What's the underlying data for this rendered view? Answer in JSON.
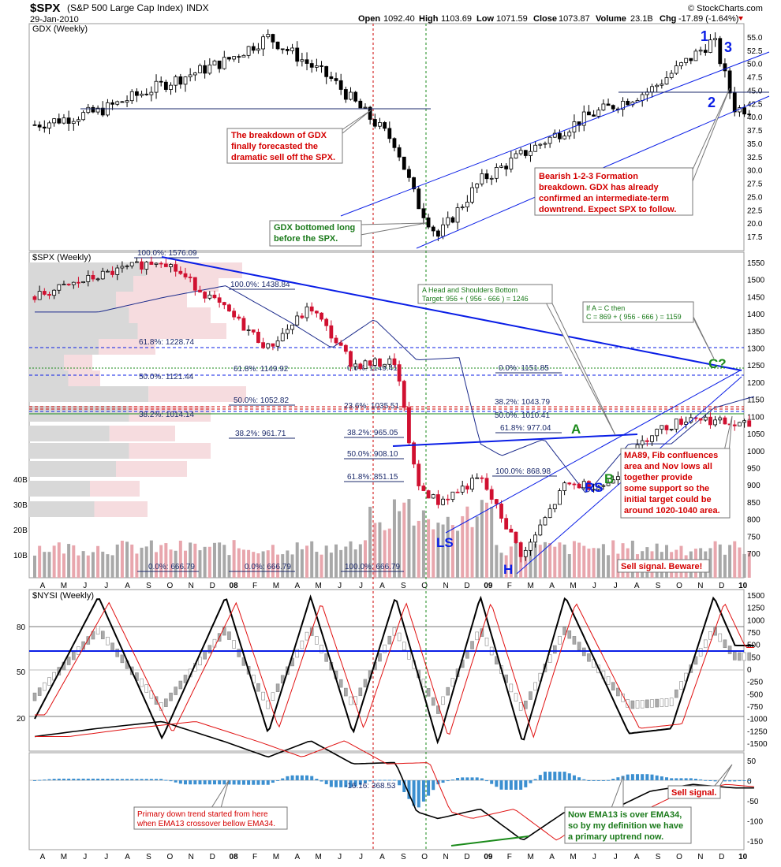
{
  "header": {
    "symbol": "$SPX",
    "name": "(S&P 500 Large Cap Index)",
    "exchange": "INDX",
    "date": "29-Jan-2010",
    "brand": "© StockCharts.com",
    "open_label": "Open",
    "open": "1092.40",
    "high_label": "High",
    "high": "1103.69",
    "low_label": "Low",
    "low": "1071.59",
    "close_label": "Close",
    "close": "1073.87",
    "volume_label": "Volume",
    "volume": "23.1B",
    "chg_label": "Chg",
    "chg": "-17.89 (-1.64%)"
  },
  "colors": {
    "blue_line": "#0a1ee6",
    "red_ma": "#e01010",
    "green_v": "#1a8a1a",
    "red_note": "#d40000",
    "green_note": "#1a7a1a",
    "vol_up": "#a8a8a8",
    "vol_down": "#e8a6ad",
    "candle_down": "#d01030",
    "macd_hist": "#3b8fd0"
  },
  "x_axis": {
    "top_labels": [
      "A",
      "M",
      "J",
      "J",
      "A",
      "S",
      "O",
      "N",
      "D",
      "08",
      "F",
      "M",
      "A",
      "M",
      "J",
      "J",
      "A",
      "S",
      "O",
      "N",
      "D",
      "09",
      "F",
      "M",
      "A",
      "M",
      "J",
      "J",
      "A",
      "S",
      "O",
      "N",
      "D",
      "10"
    ],
    "bottom_labels": [
      "A",
      "M",
      "J",
      "J",
      "A",
      "S",
      "O",
      "N",
      "D",
      "08",
      "F",
      "M",
      "A",
      "M",
      "J",
      "J",
      "A",
      "S",
      "O",
      "N",
      "D",
      "09",
      "F",
      "M",
      "A",
      "M",
      "J",
      "J",
      "A",
      "S",
      "O",
      "N",
      "D",
      "10"
    ]
  },
  "gdx": {
    "label": "GDX (Weekly)",
    "ticks": [
      "55.0",
      "52.5",
      "50.0",
      "47.5",
      "45.0",
      "42.5",
      "40.0",
      "37.5",
      "35.0",
      "32.5",
      "30.0",
      "27.5",
      "25.0",
      "22.5",
      "20.0",
      "17.5"
    ],
    "annotations": {
      "n1": "1",
      "n2": "2",
      "n3": "3",
      "note_breakdown": [
        "The breakdown of GDX",
        "finally forecasted the",
        "dramatic sell off the SPX."
      ],
      "note_bearish": [
        "Bearish 1-2-3 Formation",
        "breakdown. GDX has already",
        "confirmed an intermediate-term",
        "downtrend. Expect SPX to follow."
      ],
      "note_bottom": [
        "GDX bottomed long",
        "before the SPX."
      ]
    }
  },
  "spx": {
    "label": "$SPX (Weekly)",
    "ticks": [
      "1550",
      "1500",
      "1450",
      "1400",
      "1350",
      "1300",
      "1250",
      "1200",
      "1150",
      "1100",
      "1050",
      "1000",
      "950",
      "900",
      "850",
      "800",
      "750",
      "700"
    ],
    "volume_ticks": [
      "40B",
      "30B",
      "20B",
      "10B"
    ],
    "fib_labels": {
      "f100": "100.0%: 1576.09",
      "f100b": "100.0%: 1438.84",
      "f618a": "61.8%: 1228.74",
      "f618b": "61.8%: 1149.92",
      "f00a": "0.0%: 1149.41",
      "f00b": "0.0%: 1151.85",
      "f500a": "50.0%: 1121.44",
      "f500b": "50.0%: 1052.82",
      "f236": "23.6%: 1035.51",
      "f382a": "38.2%: 1014.14",
      "f382b": "38.2%: 1043.79",
      "f500c": "50.0%: 1010.41",
      "f382c": "38.2%: 961.71",
      "f382d": "38.2%: 965.05",
      "f618c": "61.8%: 977.04",
      "f500d": "50.0%: 908.10",
      "f1000": "100.0%: 868.98",
      "f618d": "61.8%: 851.15",
      "f00c": "0.0%: 666.79",
      "f00d": "0.0%: 666.79",
      "f100c": "100.0%: 666.79"
    },
    "hs_note": [
      "A Head and Shoulders Bottom",
      "Target: 956 + ( 956 - 666 ) = 1246"
    ],
    "ac_note": [
      "If A = C then",
      "C = 869 + ( 956 - 666 ) = 1159"
    ],
    "ma89_note": [
      "MA89, Fib confluences",
      "area and Nov lows all",
      "together provide",
      "some support so the",
      "initial target could be",
      "around 1020-1040 area."
    ],
    "sell_note": "Sell signal. Beware!",
    "labels": {
      "ls": "LS",
      "h": "H",
      "rs": "RS",
      "a": "A",
      "b": "B",
      "c": "C?"
    }
  },
  "nysi": {
    "label": "$NYSI (Weekly)",
    "left_ticks": [
      "80",
      "50",
      "20"
    ],
    "right_ticks": [
      "1500",
      "1250",
      "1000",
      "750",
      "500",
      "250",
      "0",
      "-250",
      "-500",
      "-750",
      "-1000",
      "-1250",
      "-1500"
    ]
  },
  "macd": {
    "label": "-16.16: 368.53",
    "right_ticks": [
      "50",
      "0",
      "-50",
      "-100",
      "-150"
    ],
    "note_primary_down": [
      "Primary down trend started from here",
      "when EMA13 crossover bellow EMA34."
    ],
    "note_ema": [
      "Now EMA13 is over EMA34,",
      "so by my definition we have",
      "a primary uptrend now."
    ],
    "sell_note": "Sell signal."
  },
  "chart_data": [
    {
      "type": "line",
      "panel": "GDX (Weekly)",
      "x": [
        "2007-04",
        "2007-07",
        "2007-10",
        "2008-01",
        "2008-03",
        "2008-06",
        "2008-09",
        "2008-10",
        "2008-11",
        "2009-01",
        "2009-03",
        "2009-06",
        "2009-09",
        "2009-12",
        "2010-01"
      ],
      "series": [
        {
          "name": "GDX",
          "values": [
            38.5,
            41.0,
            46.0,
            50.5,
            55.0,
            47.0,
            35.0,
            24.0,
            17.5,
            28.0,
            33.0,
            40.0,
            45.0,
            54.5,
            41.5
          ]
        }
      ],
      "ylim": [
        15.5,
        56.5
      ]
    },
    {
      "type": "line",
      "panel": "$SPX (Weekly)",
      "x": [
        "2007-04",
        "2007-07",
        "2007-10",
        "2008-01",
        "2008-03",
        "2008-05",
        "2008-07",
        "2008-09",
        "2008-10",
        "2008-11",
        "2009-01",
        "2009-03",
        "2009-05",
        "2009-07",
        "2009-09",
        "2009-11",
        "2010-01"
      ],
      "series": [
        {
          "name": "$SPX",
          "values": [
            1450,
            1510,
            1560,
            1410,
            1300,
            1420,
            1250,
            1260,
            900,
            850,
            920,
            690,
            900,
            900,
            1050,
            1100,
            1074
          ]
        }
      ],
      "ylim": [
        660,
        1570
      ]
    },
    {
      "type": "line",
      "panel": "$NYSI (Weekly)",
      "x": [
        "2007-04",
        "2007-07",
        "2007-10",
        "2008-01",
        "2008-03",
        "2008-05",
        "2008-07",
        "2008-09",
        "2008-11",
        "2009-01",
        "2009-03",
        "2009-05",
        "2009-08",
        "2009-10",
        "2009-12",
        "2010-01"
      ],
      "series": [
        {
          "name": "$NYSI",
          "values": [
            -1000,
            1500,
            -1400,
            1500,
            -1300,
            1500,
            -1300,
            1500,
            -1500,
            1500,
            -1500,
            1500,
            -1300,
            -1200,
            1500,
            500
          ]
        }
      ],
      "ylim": [
        -1500,
        1500
      ]
    }
  ]
}
